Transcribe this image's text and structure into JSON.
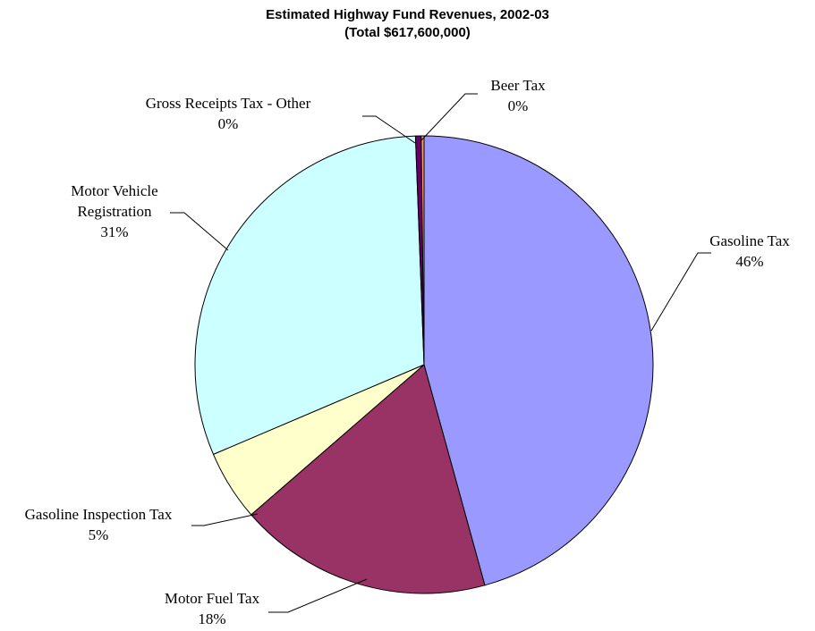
{
  "chart_data": {
    "type": "pie",
    "title": "Estimated Highway Fund Revenues, 2002-03",
    "subtitle": "(Total $617,600,000)",
    "categories": [
      "Gasoline Tax",
      "Motor Fuel Tax",
      "Gasoline Inspection Tax",
      "Motor Vehicle Registration",
      "Gross Receipts Tax - Other",
      "Beer Tax"
    ],
    "values": [
      46,
      18,
      5,
      31,
      0.4,
      0.2
    ],
    "value_labels": [
      "46%",
      "18%",
      "5%",
      "31%",
      "0%",
      "0%"
    ],
    "colors": [
      "#9999ff",
      "#993366",
      "#ffffcc",
      "#ccffff",
      "#660066",
      "#ff9966"
    ]
  }
}
